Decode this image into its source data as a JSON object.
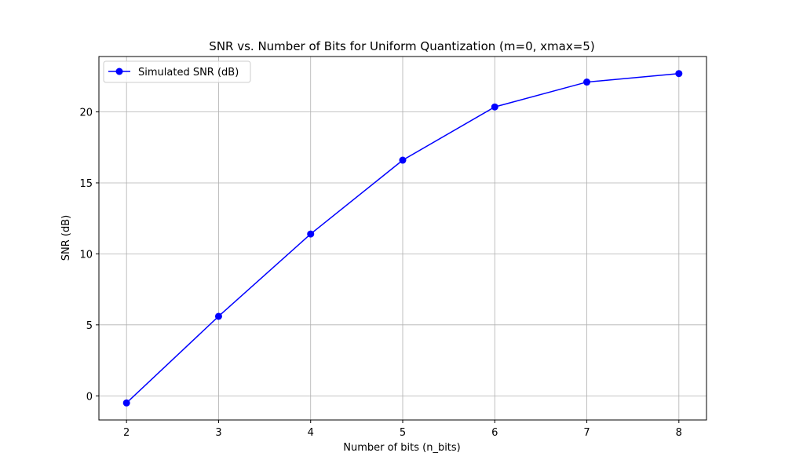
{
  "chart_data": {
    "type": "line",
    "title": "SNR vs. Number of Bits for Uniform Quantization (m=0, xmax=5)",
    "xlabel": "Number of bits (n_bits)",
    "ylabel": "SNR (dB)",
    "x": [
      2,
      3,
      4,
      5,
      6,
      7,
      8
    ],
    "x_ticks": [
      2,
      3,
      4,
      5,
      6,
      7,
      8
    ],
    "y_ticks": [
      0,
      5,
      10,
      15,
      20
    ],
    "xlim": [
      1.7,
      8.3
    ],
    "ylim": [
      -1.7,
      23.9
    ],
    "grid": true,
    "legend_position": "top-left",
    "series": [
      {
        "name": "Simulated SNR (dB)",
        "color": "#0000ff",
        "marker": "circle",
        "values": [
          -0.5,
          5.6,
          11.4,
          16.6,
          20.35,
          22.1,
          22.7
        ]
      }
    ]
  }
}
